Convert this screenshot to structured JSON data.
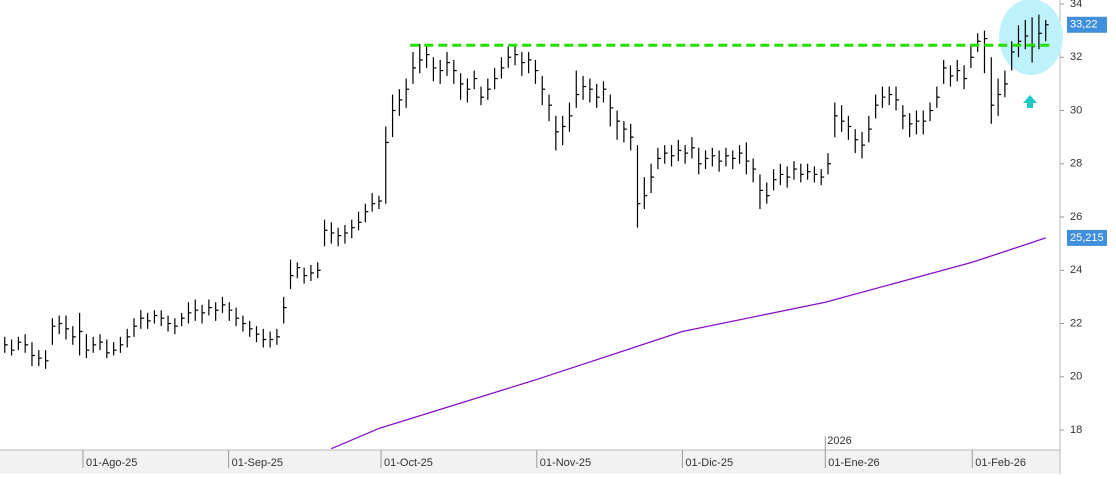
{
  "chart_data": {
    "type": "ohlc",
    "series": [
      {
        "color": "#000000",
        "high": [
          21.5,
          21.4,
          21.5,
          21.6,
          21.3,
          21.0,
          21.0,
          22.2,
          22.3,
          22.3,
          21.9,
          22.4,
          21.6,
          21.5,
          21.6,
          21.4,
          21.3,
          21.5,
          21.8,
          22.2,
          22.5,
          22.4,
          22.5,
          22.5,
          22.3,
          22.2,
          22.4,
          22.8,
          22.9,
          22.7,
          22.9,
          22.8,
          23.0,
          22.8,
          22.6,
          22.3,
          22.1,
          21.9,
          21.8,
          21.7,
          21.8,
          23.0,
          24.4,
          24.3,
          24.1,
          24.2,
          24.3,
          25.9,
          25.8,
          25.6,
          25.7,
          25.9,
          26.2,
          26.5,
          26.9,
          26.8,
          29.4,
          30.6,
          30.8,
          31.2,
          32.2,
          32.5,
          32.4,
          32.0,
          31.9,
          32.2,
          31.9,
          31.4,
          31.2,
          31.5,
          30.9,
          31.2,
          31.6,
          32.0,
          32.4,
          32.5,
          32.2,
          32.2,
          31.9,
          31.3,
          30.6,
          29.8,
          29.8,
          30.3,
          31.5,
          31.3,
          31.2,
          31.0,
          31.1,
          30.6,
          30.0,
          29.6,
          29.5,
          28.7,
          27.5,
          28.0,
          28.6,
          28.7,
          28.7,
          28.9,
          28.7,
          29.0,
          28.6,
          28.5,
          28.6,
          28.5,
          28.6,
          28.5,
          28.7,
          28.8,
          28.2,
          27.6,
          27.3,
          27.8,
          28.0,
          27.9,
          28.1,
          28.0,
          28.0,
          27.9,
          27.8,
          28.4,
          30.3,
          30.2,
          29.8,
          29.3,
          29.2,
          29.8,
          30.6,
          30.9,
          30.9,
          30.9,
          30.2,
          29.9,
          30.0,
          30.0,
          30.3,
          30.9,
          31.9,
          31.7,
          31.9,
          31.7,
          32.5,
          32.9,
          33.0,
          32.0,
          31.2,
          31.5,
          32.6,
          33.2,
          33.4,
          33.5,
          33.6,
          33.4
        ],
        "low": [
          20.9,
          20.8,
          21.0,
          20.9,
          20.4,
          20.4,
          20.3,
          21.2,
          21.6,
          21.4,
          21.2,
          20.8,
          20.7,
          20.9,
          21.0,
          20.7,
          20.8,
          20.9,
          21.1,
          21.5,
          21.8,
          21.8,
          22.0,
          21.9,
          21.7,
          21.6,
          21.9,
          22.0,
          22.1,
          22.0,
          22.3,
          22.1,
          22.4,
          22.1,
          21.9,
          21.7,
          21.5,
          21.3,
          21.1,
          21.1,
          21.2,
          22.0,
          23.3,
          23.7,
          23.5,
          23.6,
          23.7,
          24.9,
          25.0,
          24.9,
          25.0,
          25.2,
          25.5,
          25.8,
          26.2,
          26.3,
          26.5,
          29.0,
          29.8,
          30.1,
          31.0,
          31.4,
          31.6,
          31.1,
          31.0,
          31.3,
          31.0,
          30.4,
          30.3,
          30.8,
          30.2,
          30.4,
          30.8,
          31.2,
          31.6,
          31.7,
          31.3,
          31.4,
          31.0,
          30.2,
          29.6,
          28.5,
          28.7,
          29.2,
          30.1,
          30.4,
          30.3,
          30.1,
          30.3,
          29.4,
          28.9,
          28.8,
          28.5,
          25.6,
          26.3,
          26.9,
          27.8,
          28.0,
          27.9,
          28.1,
          28.0,
          28.2,
          27.6,
          27.8,
          27.9,
          27.7,
          27.9,
          27.8,
          28.0,
          27.6,
          27.3,
          26.3,
          26.5,
          27.0,
          27.2,
          27.1,
          27.4,
          27.3,
          27.4,
          27.3,
          27.2,
          27.6,
          29.0,
          29.2,
          28.9,
          28.4,
          28.2,
          28.8,
          29.7,
          30.1,
          30.2,
          30.0,
          29.3,
          29.0,
          29.1,
          29.1,
          29.6,
          30.1,
          31.0,
          30.9,
          31.1,
          30.8,
          31.6,
          32.2,
          31.4,
          29.5,
          29.8,
          30.5,
          31.5,
          32.0,
          32.3,
          31.8,
          32.3,
          32.6
        ],
        "close": [
          21.2,
          21.0,
          21.3,
          21.2,
          20.8,
          20.7,
          20.6,
          21.9,
          22.0,
          21.8,
          21.5,
          21.7,
          21.0,
          21.2,
          21.3,
          20.9,
          21.0,
          21.2,
          21.5,
          21.9,
          22.2,
          22.1,
          22.3,
          22.2,
          22.0,
          21.9,
          22.2,
          22.4,
          22.5,
          22.4,
          22.6,
          22.5,
          22.7,
          22.5,
          22.2,
          22.0,
          21.8,
          21.6,
          21.4,
          21.4,
          21.5,
          22.6,
          23.8,
          24.1,
          23.8,
          23.9,
          24.0,
          25.5,
          25.4,
          25.3,
          25.4,
          25.6,
          25.8,
          26.2,
          26.5,
          26.6,
          28.8,
          30.0,
          30.4,
          30.8,
          31.6,
          31.9,
          32.1,
          31.6,
          31.5,
          31.8,
          31.5,
          31.0,
          30.8,
          31.2,
          30.5,
          30.8,
          31.2,
          31.6,
          32.0,
          32.1,
          31.8,
          31.9,
          31.5,
          30.8,
          30.2,
          29.2,
          29.4,
          29.8,
          30.6,
          30.9,
          30.8,
          30.5,
          30.8,
          30.1,
          29.6,
          29.3,
          29.0,
          26.5,
          26.8,
          27.5,
          28.2,
          28.4,
          28.3,
          28.5,
          28.4,
          28.6,
          28.0,
          28.2,
          28.3,
          28.1,
          28.3,
          28.2,
          28.4,
          28.1,
          27.8,
          27.0,
          26.8,
          27.4,
          27.6,
          27.5,
          27.8,
          27.6,
          27.7,
          27.6,
          27.5,
          28.0,
          29.8,
          29.6,
          29.4,
          28.9,
          28.7,
          29.3,
          30.2,
          30.5,
          30.6,
          30.4,
          29.8,
          29.5,
          29.6,
          29.6,
          30.0,
          30.5,
          31.6,
          31.3,
          31.5,
          31.2,
          32.0,
          32.6,
          32.7,
          30.2,
          30.6,
          31.0,
          32.2,
          32.6,
          32.8,
          32.4,
          32.9,
          33.22
        ]
      }
    ],
    "moving_average": {
      "color": "#8a10c8",
      "x": [
        48,
        55,
        78.2,
        99.6,
        120.6,
        142.2,
        153
      ],
      "values": [
        17.3,
        18.06,
        19.9,
        21.7,
        22.8,
        24.3,
        25.215
      ]
    },
    "resistance": {
      "value": 32.45,
      "x": [
        59.6,
        153.7
      ],
      "color": "#22e000"
    },
    "price_labels": [
      {
        "value": 33.22,
        "label": "33,22"
      },
      {
        "value": 25.215,
        "label": "25,215"
      }
    ],
    "annotations": [
      {
        "text": "2026",
        "x": 120.6
      }
    ],
    "xlim": [
      -0.7,
      155.1
    ],
    "ylim": [
      17.25,
      34.15
    ],
    "xticks": [
      {
        "value": 11.5,
        "label": "01-Ago-25"
      },
      {
        "value": 32.9,
        "label": "01-Sep-25"
      },
      {
        "value": 55.3,
        "label": "01-Oct-25"
      },
      {
        "value": 78.2,
        "label": "01-Nov-25"
      },
      {
        "value": 99.6,
        "label": "01-Dic-25"
      },
      {
        "value": 120.6,
        "label": "01-Ene-26"
      },
      {
        "value": 142.2,
        "label": "01-Feb-26"
      }
    ],
    "yticks": [
      18,
      20,
      22,
      24,
      26,
      28,
      30,
      32,
      34
    ]
  }
}
